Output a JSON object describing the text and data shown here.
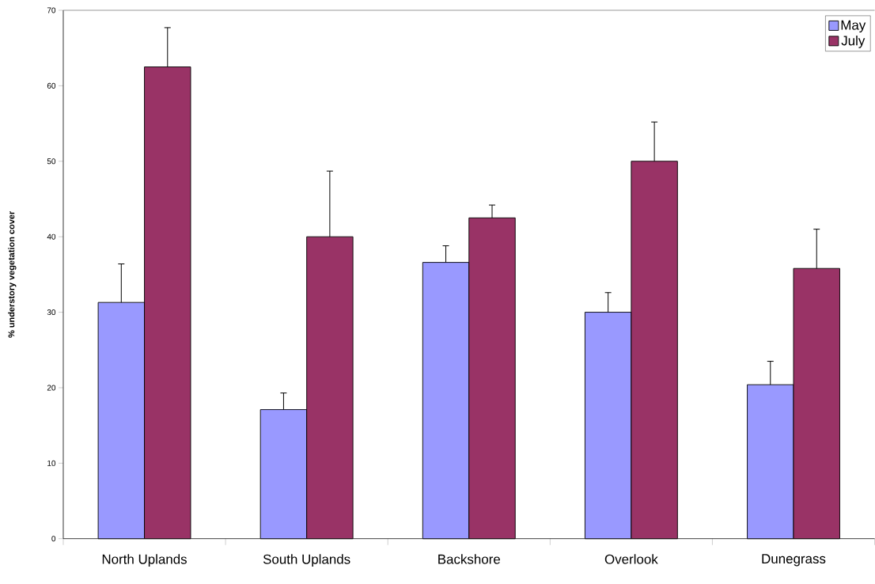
{
  "chart_data": {
    "type": "bar",
    "ylabel": "% understory vegetation cover",
    "categories": [
      "North Uplands",
      "South Uplands",
      "Backshore",
      "Overlook",
      "Dunegrass"
    ],
    "series": [
      {
        "name": "May",
        "color": "#9999ff",
        "values": [
          31.3,
          17.1,
          36.6,
          30.0,
          20.4
        ],
        "errors": [
          5.1,
          2.2,
          2.2,
          2.6,
          3.1
        ]
      },
      {
        "name": "July",
        "color": "#993366",
        "values": [
          62.5,
          40.0,
          42.5,
          50.0,
          35.8
        ],
        "errors": [
          5.2,
          8.7,
          1.7,
          5.2,
          5.2
        ]
      }
    ],
    "ylim": [
      0,
      70
    ],
    "yticks": [
      0,
      10,
      20,
      30,
      40,
      50,
      60,
      70
    ],
    "grid": false,
    "legend": "top right"
  }
}
